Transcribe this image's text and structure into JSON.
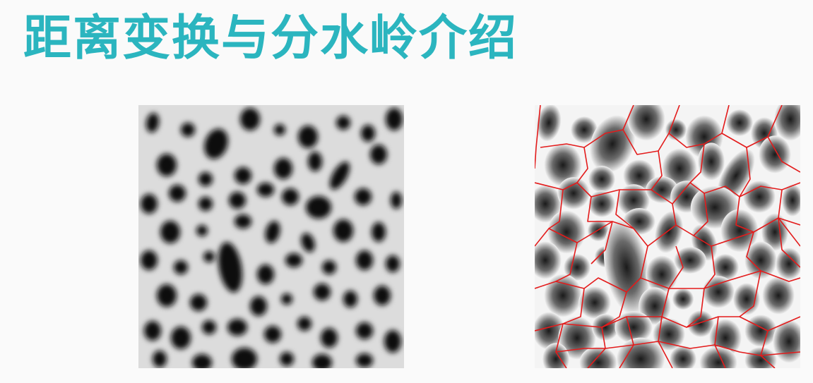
{
  "slide": {
    "title": "距离变换与分水岭介绍"
  },
  "colors": {
    "title": "#2bb5bf",
    "background": "#fafafa",
    "watershed_lines": "#e31b1b"
  },
  "images": [
    {
      "name": "original-grayscale-blobs"
    },
    {
      "name": "watershed-segmentation-result"
    }
  ]
}
